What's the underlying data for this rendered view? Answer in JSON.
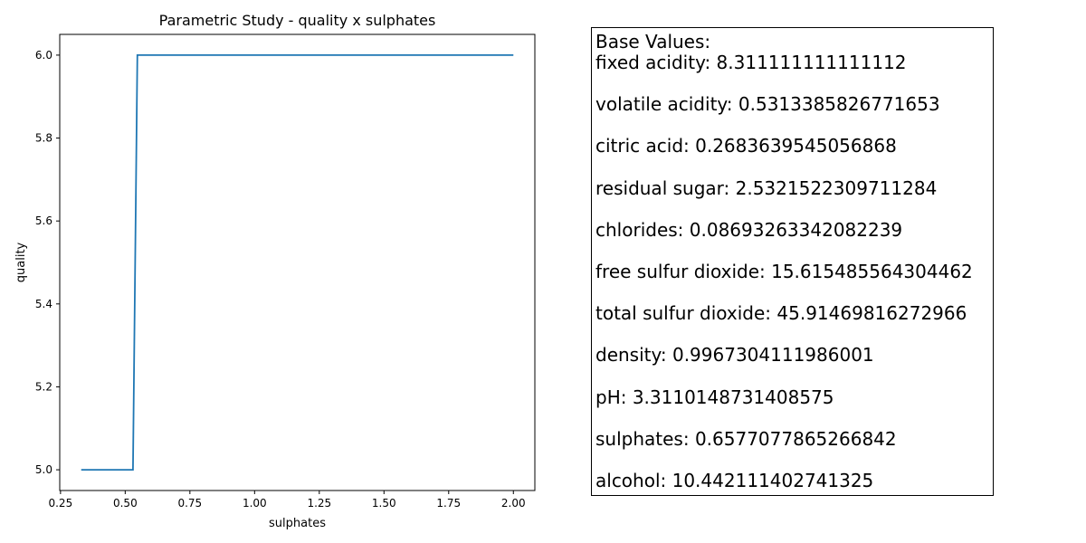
{
  "chart_data": {
    "type": "line",
    "title": "Parametric Study - quality x sulphates",
    "xlabel": "sulphates",
    "ylabel": "quality",
    "xlim": [
      0.247,
      2.083
    ],
    "ylim": [
      4.95,
      6.05
    ],
    "xticks": [
      0.25,
      0.5,
      0.75,
      1.0,
      1.25,
      1.5,
      1.75,
      2.0
    ],
    "xtick_labels": [
      "0.25",
      "0.50",
      "0.75",
      "1.00",
      "1.25",
      "1.50",
      "1.75",
      "2.00"
    ],
    "yticks": [
      5.0,
      5.2,
      5.4,
      5.6,
      5.8,
      6.0
    ],
    "ytick_labels": [
      "5.0",
      "5.2",
      "5.4",
      "5.6",
      "5.8",
      "6.0"
    ],
    "grid": false,
    "series": [
      {
        "color": "#1f77b4",
        "x": [
          0.33,
          0.53,
          0.547,
          2.0
        ],
        "y": [
          5.0,
          5.0,
          6.0,
          6.0
        ]
      }
    ]
  },
  "info_panel": {
    "heading": "Base Values:",
    "entries": [
      "fixed acidity: 8.311111111111112",
      "volatile acidity: 0.5313385826771653",
      "citric acid: 0.2683639545056868",
      "residual sugar: 2.5321522309711284",
      "chlorides: 0.08693263342082239",
      "free sulfur dioxide: 15.615485564304462",
      "total sulfur dioxide: 45.91469816272966",
      "density: 0.9967304111986001",
      "pH: 3.3110148731408575",
      "sulphates: 0.6577077865266842",
      "alcohol: 10.442111402741325"
    ]
  }
}
